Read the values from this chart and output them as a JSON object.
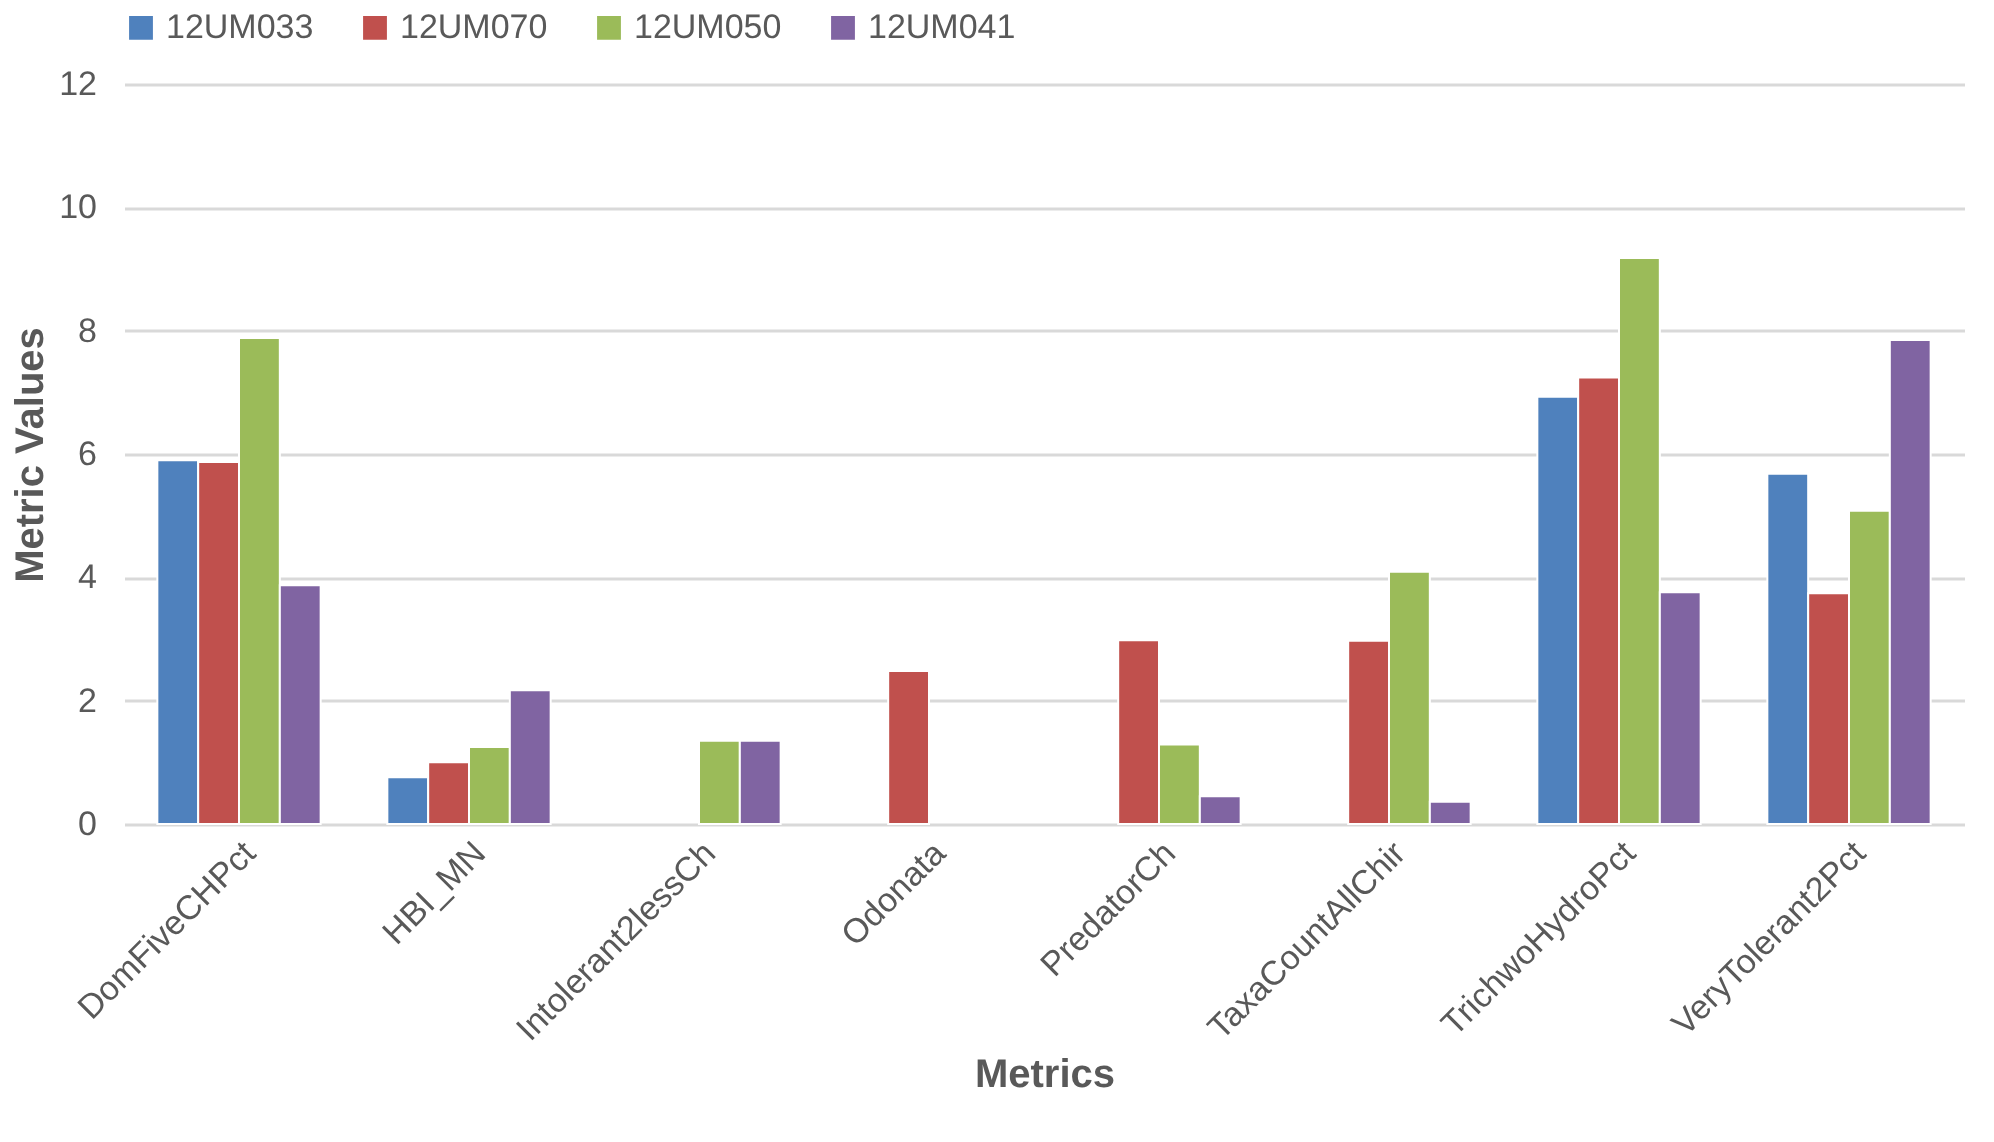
{
  "chart_data": {
    "type": "bar",
    "xlabel": "Metrics",
    "ylabel": "Metric Values",
    "categories": [
      "DomFiveCHPct",
      "HBI_MN",
      "Intolerant2lessCh",
      "Odonata",
      "PredatorCh",
      "TaxaCountAllChir",
      "TrichwoHydroPct",
      "VeryTolerant2Pct"
    ],
    "series": [
      {
        "name": "12UM033",
        "color": "#4f81bd",
        "values": [
          5.9,
          0.76,
          null,
          null,
          null,
          null,
          6.93,
          5.68
        ]
      },
      {
        "name": "12UM070",
        "color": "#c0504d",
        "values": [
          5.87,
          1.0,
          null,
          2.48,
          2.98,
          2.97,
          7.24,
          3.74
        ]
      },
      {
        "name": "12UM050",
        "color": "#9bbb59",
        "values": [
          7.88,
          1.25,
          1.35,
          null,
          1.29,
          4.09,
          9.18,
          5.08
        ]
      },
      {
        "name": "12UM041",
        "color": "#8064a2",
        "values": [
          3.87,
          2.17,
          1.35,
          null,
          0.45,
          0.36,
          3.76,
          7.85
        ]
      }
    ],
    "ylim": [
      0,
      12
    ],
    "yticks": [
      0,
      2,
      4,
      6,
      8,
      10,
      12
    ],
    "grid": "y",
    "legend": "top"
  }
}
